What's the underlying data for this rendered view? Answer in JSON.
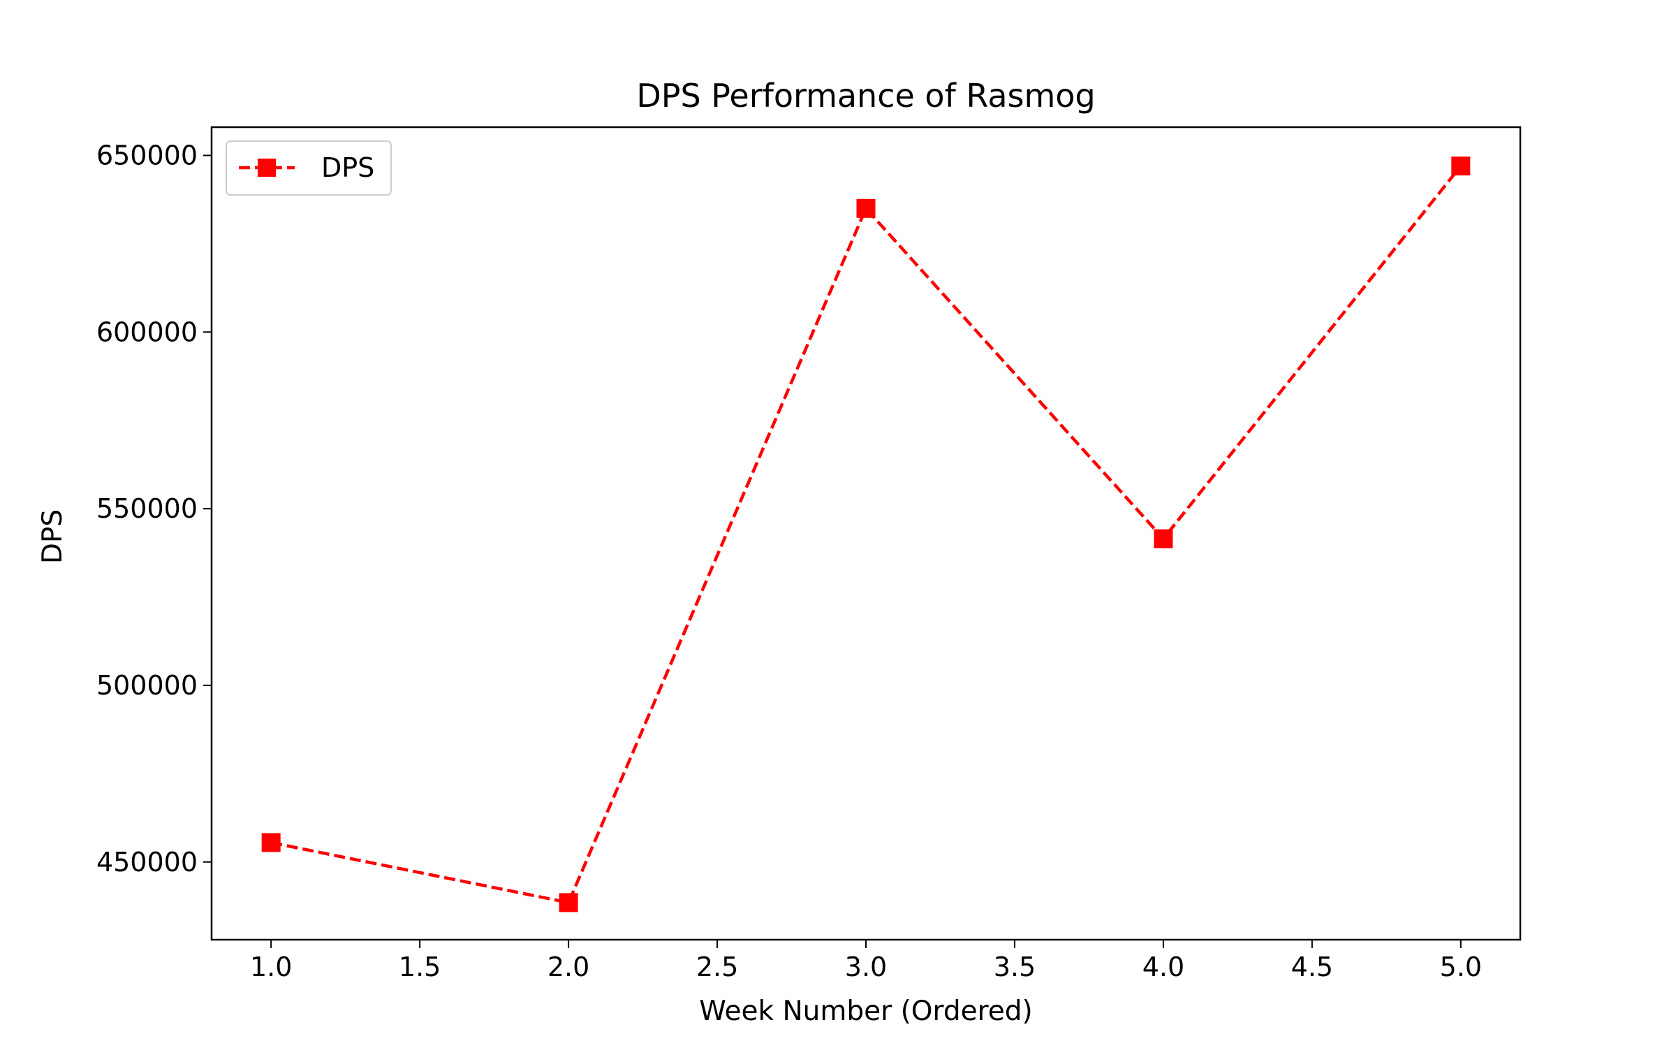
{
  "chart_data": {
    "type": "line",
    "title": "DPS Performance of Rasmog",
    "xlabel": "Week Number (Ordered)",
    "ylabel": "DPS",
    "xlim": [
      0.8,
      5.2
    ],
    "ylim": [
      428000,
      658000
    ],
    "xticks": [
      1.0,
      1.5,
      2.0,
      2.5,
      3.0,
      3.5,
      4.0,
      4.5,
      5.0
    ],
    "xtick_labels": [
      "1.0",
      "1.5",
      "2.0",
      "2.5",
      "3.0",
      "3.5",
      "4.0",
      "4.5",
      "5.0"
    ],
    "yticks": [
      450000,
      500000,
      550000,
      600000,
      650000
    ],
    "ytick_labels": [
      "450000",
      "500000",
      "550000",
      "600000",
      "650000"
    ],
    "grid": false,
    "legend": {
      "position": "top-left",
      "entries": [
        "DPS"
      ]
    },
    "series": [
      {
        "name": "DPS",
        "color": "#ff0000",
        "line_style": "dashed",
        "marker": "square",
        "x": [
          1,
          2,
          3,
          4,
          5
        ],
        "y": [
          455500,
          438500,
          635000,
          541500,
          647000
        ]
      }
    ]
  }
}
